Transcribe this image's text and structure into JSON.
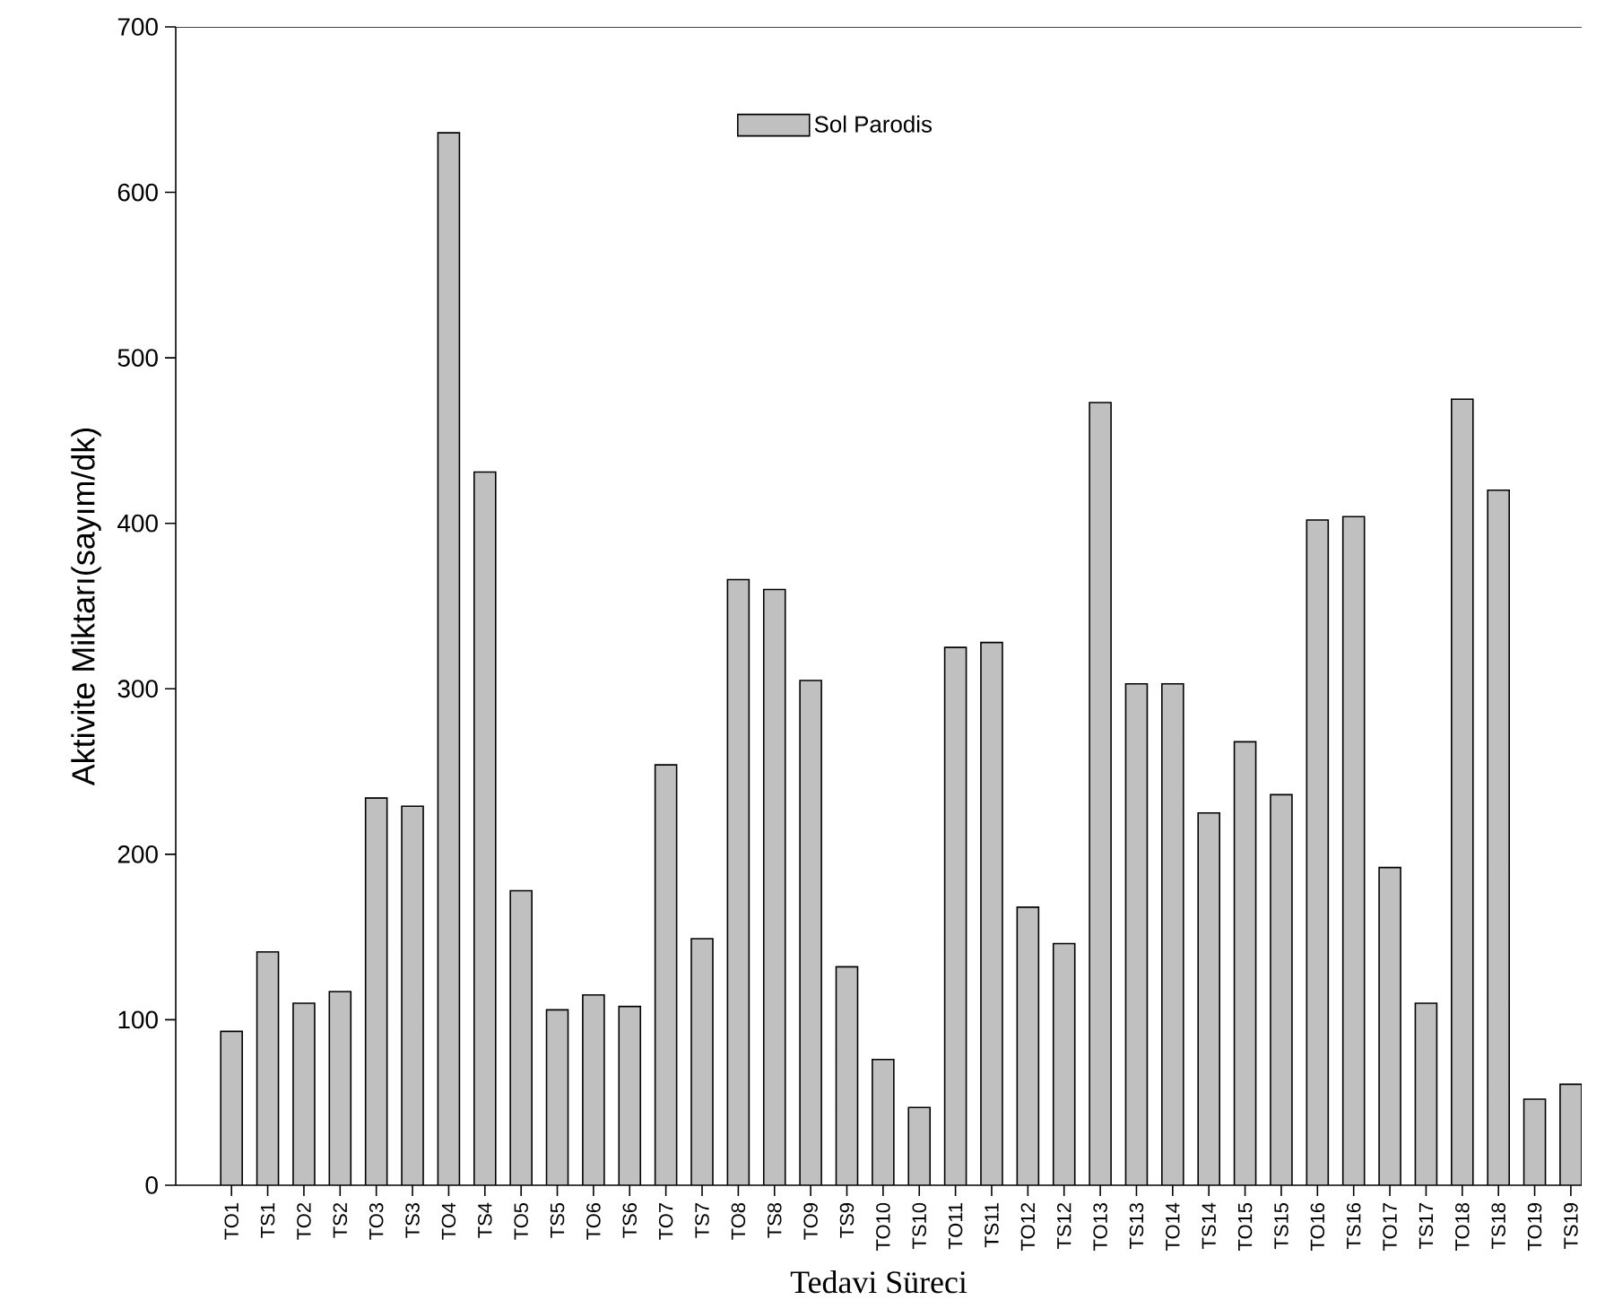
{
  "chart_data": {
    "type": "bar",
    "xlabel": "Tedavi Süreci",
    "ylabel": "Aktivite Miktarı(sayım/dk)",
    "categories": [
      "TO1",
      "TS1",
      "TO2",
      "TS2",
      "TO3",
      "TS3",
      "TO4",
      "TS4",
      "TO5",
      "TS5",
      "TO6",
      "TS6",
      "TO7",
      "TS7",
      "TO8",
      "TS8",
      "TO9",
      "TS9",
      "TO10",
      "TS10",
      "TO11",
      "TS11",
      "TO12",
      "TS12",
      "TO13",
      "TS13",
      "TO14",
      "TS14",
      "TO15",
      "TS15",
      "TO16",
      "TS16",
      "TO17",
      "TS17",
      "TO18",
      "TS18",
      "TO19",
      "TS19"
    ],
    "series": [
      {
        "name": "Sol Parodis",
        "color": "#c0c0c0",
        "values": [
          93,
          141,
          110,
          117,
          234,
          229,
          636,
          431,
          178,
          106,
          115,
          108,
          254,
          149,
          366,
          360,
          305,
          132,
          76,
          47,
          325,
          328,
          168,
          146,
          473,
          303,
          303,
          225,
          268,
          236,
          402,
          404,
          192,
          110,
          475,
          420,
          52,
          61
        ]
      }
    ],
    "ylim": [
      0,
      700
    ],
    "yticks": [
      0,
      100,
      200,
      300,
      400,
      500,
      600,
      700
    ],
    "legend": "top",
    "grid": false
  }
}
